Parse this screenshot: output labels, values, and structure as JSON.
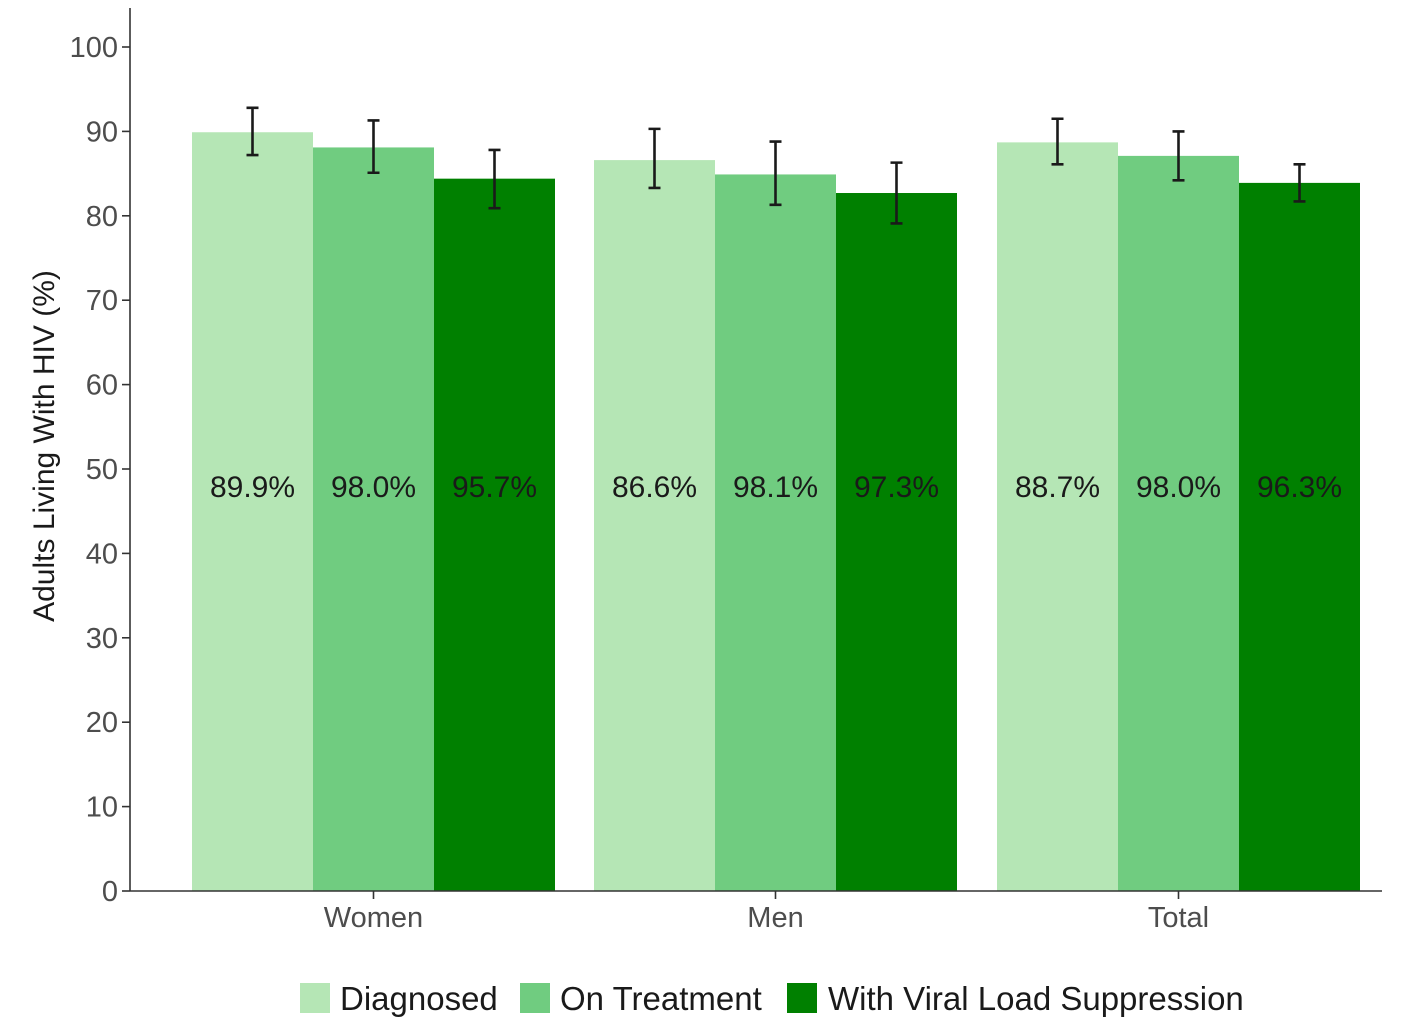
{
  "chart_data": {
    "type": "bar",
    "ylabel": "Adults Living With HIV (%)",
    "xlabel": "",
    "ylim": [
      0,
      100
    ],
    "yticks": [
      0,
      10,
      20,
      30,
      40,
      50,
      60,
      70,
      80,
      90,
      100
    ],
    "categories": [
      "Women",
      "Men",
      "Total"
    ],
    "series": [
      {
        "name": "Diagnosed",
        "color": "#b5e6b5",
        "values": [
          89.9,
          86.6,
          88.7
        ],
        "err_low": [
          87.2,
          83.3,
          86.1
        ],
        "err_high": [
          92.8,
          90.3,
          91.5
        ],
        "labels": [
          "89.9%",
          "86.6%",
          "88.7%"
        ]
      },
      {
        "name": "On Treatment",
        "color": "#70cc80",
        "values": [
          88.1,
          84.9,
          87.1
        ],
        "err_low": [
          85.1,
          81.3,
          84.2
        ],
        "err_high": [
          91.3,
          88.8,
          90.0
        ],
        "labels": [
          "98.0%",
          "98.1%",
          "98.0%"
        ]
      },
      {
        "name": "With Viral Load Suppression",
        "color": "#008000",
        "values": [
          84.4,
          82.7,
          83.9
        ],
        "err_low": [
          80.9,
          79.1,
          81.7
        ],
        "err_high": [
          87.8,
          86.3,
          86.1
        ],
        "labels": [
          "95.7%",
          "97.3%",
          "96.3%"
        ]
      }
    ],
    "label_y": 48,
    "grid": false,
    "legend_position": "bottom"
  }
}
